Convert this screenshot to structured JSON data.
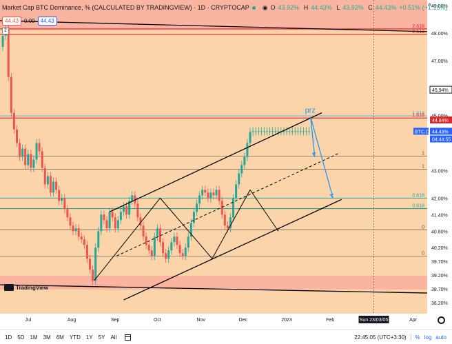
{
  "header": {
    "title": "Market Cap BTC Dominance, % (CALCULATED BY TRADINGVIEW) · 1D · CRYPTOCAP",
    "open_label": "O",
    "open": "43.92%",
    "high_label": "H",
    "high": "44.43%",
    "low_label": "L",
    "low": "43.92%",
    "close_label": "C",
    "close": "44.43%",
    "change": "+0.51% (+1.15%)",
    "top_right_icon": "^"
  },
  "value_row": {
    "value1": "44.43",
    "value2": "0.00",
    "value3": "44.43"
  },
  "collapse_label": "2",
  "logo_text": "TradingView",
  "colors": {
    "background": "#fbd5a9",
    "candle_up": "#26a69a",
    "candle_down": "#ef5350",
    "fib_green": "#26a69a",
    "fib_red": "#e0262b",
    "fib_blue": "#6fb3e6",
    "zone_fill": "#f9b19f",
    "arrow_blue": "#2196f3",
    "trend_black": "#000000"
  },
  "bottom": {
    "timeframes": [
      "1D",
      "5D",
      "1M",
      "3M",
      "6M",
      "YTD",
      "1Y",
      "5Y",
      "All"
    ],
    "clock": "22:45:05 (UTC+3:30)",
    "percent": "%",
    "log": "log",
    "auto": "auto"
  },
  "chart_data": {
    "type": "line",
    "title": "Market Cap BTC Dominance, %",
    "ylim": [
      37.8,
      49.2
    ],
    "y_ticks": [
      "49.00%",
      "48.00%",
      "47.00%",
      "45.00%",
      "43.00%",
      "42.00%",
      "41.40%",
      "40.80%",
      "40.20%",
      "39.70%",
      "39.20%",
      "38.70%",
      "38.20%"
    ],
    "y_tick_values": [
      49.0,
      48.0,
      47.0,
      45.0,
      43.0,
      42.0,
      41.4,
      40.8,
      40.2,
      39.7,
      39.2,
      38.7,
      38.2
    ],
    "x_ticks": [
      "Jul",
      "Aug",
      "Sep",
      "Oct",
      "Nov",
      "Dec",
      "2023",
      "Feb",
      "Apr"
    ],
    "x_tick_days": [
      16,
      47,
      78,
      108,
      139,
      169,
      200,
      231,
      290
    ],
    "x_range_days": [
      -4,
      300
    ],
    "date_label": "Sun 23/03/05",
    "date_label_day": 262,
    "price_labels": [
      {
        "text": "45.94%",
        "value": 45.94,
        "style": "dark"
      },
      {
        "text": "44.84%",
        "value": 44.84,
        "style": "red"
      },
      {
        "text": "BTC.D",
        "value": 44.43,
        "style": "blue"
      },
      {
        "text": "44.43%",
        "value": 44.43,
        "style": "blue"
      },
      {
        "text": "04:44:55",
        "value": 44.15,
        "style": "blue"
      }
    ],
    "fib_levels": [
      {
        "label": "2.618",
        "value": 48.15,
        "color": "red"
      },
      {
        "label": "2.618",
        "value": 47.95,
        "color": "red"
      },
      {
        "label": "1.618",
        "value": 44.99,
        "color": "blue"
      },
      {
        "label": "1.618",
        "value": 44.91,
        "color": "red"
      },
      {
        "label": "1",
        "value": 43.52,
        "color": "dark"
      },
      {
        "label": "1",
        "value": 43.05,
        "color": "dark"
      },
      {
        "label": "0.618",
        "value": 42.0,
        "color": "green"
      },
      {
        "label": "0.618",
        "value": 41.62,
        "color": "green"
      },
      {
        "label": "0",
        "value": 40.85,
        "color": "dark"
      },
      {
        "label": "0",
        "value": 39.89,
        "color": "dark"
      }
    ],
    "zones": [
      {
        "from": 48.1,
        "to": 49.2
      },
      {
        "from": 38.68,
        "to": 39.18
      }
    ],
    "annotation": "prz",
    "series": [
      {
        "name": "BTC.D close",
        "x": [
          -4,
          -2,
          0,
          2,
          4,
          6,
          8,
          10,
          12,
          14,
          16,
          18,
          20,
          22,
          24,
          26,
          28,
          30,
          32,
          34,
          36,
          38,
          40,
          42,
          44,
          46,
          48,
          50,
          52,
          54,
          56,
          58,
          60,
          62,
          64,
          66,
          68,
          70,
          72,
          74,
          76,
          78,
          80,
          82,
          84,
          86,
          88,
          90,
          92,
          94,
          96,
          98,
          100,
          102,
          104,
          106,
          108,
          110,
          112,
          114,
          116,
          118,
          120,
          122,
          124,
          126,
          128,
          130,
          132,
          134,
          136,
          138,
          140,
          142,
          144,
          146,
          148,
          150,
          152,
          154,
          156,
          158,
          160,
          162,
          164,
          166,
          168,
          170,
          172,
          174,
          176,
          178,
          180,
          182,
          184,
          186,
          188,
          190,
          192,
          194,
          196,
          198,
          200,
          202,
          204,
          206,
          208,
          210,
          212,
          214,
          216
        ],
        "values": [
          47.5,
          47.9,
          48.2,
          46.4,
          45.1,
          44.5,
          44.0,
          43.5,
          43.8,
          43.2,
          43.6,
          43.1,
          43.4,
          44.0,
          43.7,
          43.1,
          42.5,
          42.8,
          42.2,
          42.6,
          42.3,
          41.9,
          42.0,
          41.6,
          41.3,
          41.0,
          40.8,
          40.9,
          40.6,
          40.5,
          40.3,
          39.8,
          39.4,
          39.0,
          40.2,
          40.8,
          41.4,
          41.2,
          40.9,
          41.5,
          41.3,
          40.9,
          41.2,
          41.5,
          41.7,
          41.4,
          41.9,
          42.1,
          41.8,
          41.3,
          41.0,
          40.6,
          40.3,
          40.1,
          39.9,
          40.6,
          40.9,
          40.4,
          40.0,
          39.8,
          40.1,
          40.4,
          40.6,
          40.3,
          40.0,
          39.9,
          40.2,
          40.6,
          41.1,
          41.5,
          41.8,
          42.1,
          42.3,
          42.2,
          42.0,
          42.2,
          42.1,
          42.3,
          41.9,
          41.4,
          41.0,
          40.9,
          41.3,
          42.0,
          42.5,
          42.9,
          43.2,
          43.5,
          44.0,
          44.4,
          44.43,
          44.43,
          44.43,
          44.43,
          44.43,
          44.43,
          44.43,
          44.43,
          44.43,
          44.43,
          44.43,
          44.43,
          44.43,
          44.43,
          44.43,
          44.43,
          44.43,
          44.43,
          44.43,
          44.43,
          44.43
        ]
      }
    ]
  }
}
